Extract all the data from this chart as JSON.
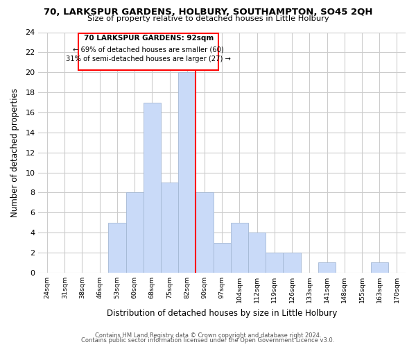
{
  "title": "70, LARKSPUR GARDENS, HOLBURY, SOUTHAMPTON, SO45 2QH",
  "subtitle": "Size of property relative to detached houses in Little Holbury",
  "xlabel": "Distribution of detached houses by size in Little Holbury",
  "ylabel": "Number of detached properties",
  "bin_labels": [
    "24sqm",
    "31sqm",
    "38sqm",
    "46sqm",
    "53sqm",
    "60sqm",
    "68sqm",
    "75sqm",
    "82sqm",
    "90sqm",
    "97sqm",
    "104sqm",
    "112sqm",
    "119sqm",
    "126sqm",
    "133sqm",
    "141sqm",
    "148sqm",
    "155sqm",
    "163sqm",
    "170sqm"
  ],
  "bar_heights": [
    0,
    0,
    0,
    0,
    5,
    8,
    17,
    9,
    20,
    8,
    3,
    5,
    4,
    2,
    2,
    0,
    1,
    0,
    0,
    1,
    0
  ],
  "bar_color": "#c9daf8",
  "bar_edge_color": "#a4b8d4",
  "property_line_label": "70 LARKSPUR GARDENS: 92sqm",
  "annotation_line1": "← 69% of detached houses are smaller (60)",
  "annotation_line2": "31% of semi-detached houses are larger (27) →",
  "ylim": [
    0,
    24
  ],
  "yticks": [
    0,
    2,
    4,
    6,
    8,
    10,
    12,
    14,
    16,
    18,
    20,
    22,
    24
  ],
  "grid_color": "#cccccc",
  "footer_line1": "Contains HM Land Registry data © Crown copyright and database right 2024.",
  "footer_line2": "Contains public sector information licensed under the Open Government Licence v3.0.",
  "bg_color": "#ffffff"
}
